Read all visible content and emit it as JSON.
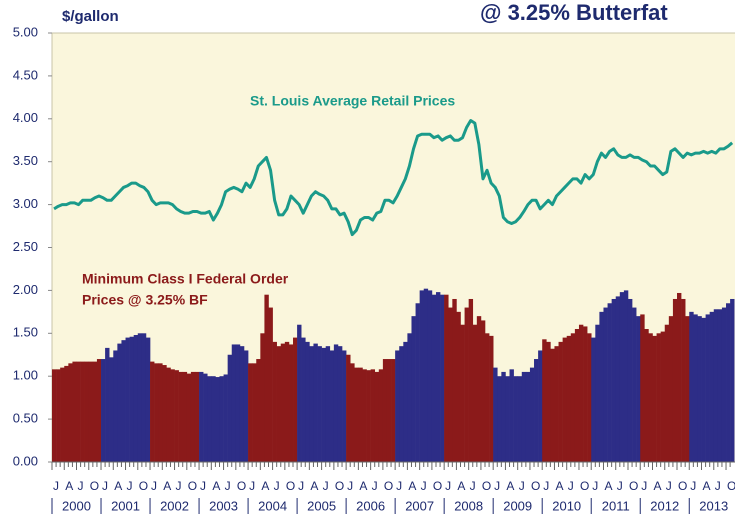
{
  "chart_data": {
    "type": "bar",
    "title": "@ 3.25% Butterfat",
    "y_label": "$/gallon",
    "ylim": [
      0,
      5
    ],
    "yticks": [
      {
        "value": 0,
        "label": "0.00"
      },
      {
        "value": 0.5,
        "label": "0.50"
      },
      {
        "value": 1,
        "label": "1.00"
      },
      {
        "value": 1.5,
        "label": "1.50"
      },
      {
        "value": 2,
        "label": "2.00"
      },
      {
        "value": 2.5,
        "label": "2.50"
      },
      {
        "value": 3,
        "label": "3.00"
      },
      {
        "value": 3.5,
        "label": "3.50"
      },
      {
        "value": 4,
        "label": "4.00"
      },
      {
        "value": 4.5,
        "label": "4.50"
      },
      {
        "value": 5,
        "label": "5.00"
      }
    ],
    "grid": false,
    "year_labels": [
      "2000",
      "2001",
      "2002",
      "2003",
      "2004",
      "2005",
      "2006",
      "2007",
      "2008",
      "2009",
      "2010",
      "2011",
      "2012",
      "2013"
    ],
    "categories": [
      "J",
      null,
      null,
      "A",
      null,
      null,
      "J",
      null,
      null,
      "O",
      null,
      null,
      "J",
      null,
      null,
      "A",
      null,
      null,
      "J",
      null,
      null,
      "O",
      null,
      null,
      "J",
      null,
      null,
      "A",
      null,
      null,
      "J",
      null,
      null,
      "O",
      null,
      null,
      "J",
      null,
      null,
      "A",
      null,
      null,
      "J",
      null,
      null,
      "O",
      null,
      null,
      "J",
      null,
      null,
      "A",
      null,
      null,
      "J",
      null,
      null,
      "O",
      null,
      null,
      "J",
      null,
      null,
      "A",
      null,
      null,
      "J",
      null,
      null,
      "O",
      null,
      null,
      "J",
      null,
      null,
      "A",
      null,
      null,
      "J",
      null,
      null,
      "O",
      null,
      null,
      "J",
      null,
      null,
      "A",
      null,
      null,
      "J",
      null,
      null,
      "O",
      null,
      null,
      "J",
      null,
      null,
      "A",
      null,
      null,
      "J",
      null,
      null,
      "O",
      null,
      null,
      "J",
      null,
      null,
      "A",
      null,
      null,
      "J",
      null,
      null,
      "O",
      null,
      null,
      "J",
      null,
      null,
      "A",
      null,
      null,
      "J",
      null,
      null,
      "O",
      null,
      null,
      "J",
      null,
      null,
      "A",
      null,
      null,
      "J",
      null,
      null,
      "O",
      null,
      null,
      "J",
      null,
      null,
      "A",
      null,
      null,
      "J",
      null,
      null,
      "O",
      null,
      null,
      "J",
      null,
      null,
      "A",
      null,
      null,
      "J",
      null,
      null,
      "O",
      null
    ],
    "annotations": [
      {
        "text": "St. Louis Average Retail Prices",
        "color": "#1a9a8a"
      },
      {
        "text": "Minimum Class I Federal Order",
        "color": "#8b1a1a"
      },
      {
        "text": "Prices @ 3.25% BF",
        "color": "#8b1a1a"
      }
    ],
    "series": [
      {
        "type": "bar",
        "colors": [
          "#8b1a1a",
          "#2d2d87"
        ],
        "values": [
          1.08,
          1.08,
          1.1,
          1.12,
          1.15,
          1.17,
          1.17,
          1.17,
          1.17,
          1.17,
          1.17,
          1.2,
          1.2,
          1.33,
          1.22,
          1.3,
          1.38,
          1.42,
          1.45,
          1.46,
          1.48,
          1.5,
          1.5,
          1.45,
          1.17,
          1.15,
          1.15,
          1.13,
          1.1,
          1.08,
          1.07,
          1.05,
          1.05,
          1.03,
          1.05,
          1.05,
          1.05,
          1.03,
          1.0,
          1.0,
          0.99,
          1.0,
          1.02,
          1.25,
          1.37,
          1.37,
          1.35,
          1.3,
          1.15,
          1.15,
          1.2,
          1.5,
          1.95,
          1.8,
          1.4,
          1.35,
          1.38,
          1.4,
          1.37,
          1.45,
          1.6,
          1.45,
          1.4,
          1.35,
          1.38,
          1.35,
          1.33,
          1.35,
          1.3,
          1.37,
          1.35,
          1.3,
          1.25,
          1.15,
          1.1,
          1.1,
          1.08,
          1.07,
          1.08,
          1.05,
          1.08,
          1.2,
          1.2,
          1.2,
          1.3,
          1.35,
          1.4,
          1.5,
          1.7,
          1.85,
          2.0,
          2.02,
          2.0,
          1.95,
          1.98,
          1.95,
          1.95,
          1.8,
          1.9,
          1.75,
          1.6,
          1.8,
          1.9,
          1.6,
          1.7,
          1.65,
          1.5,
          1.47,
          1.1,
          1.0,
          1.05,
          1.0,
          1.08,
          1.0,
          1.0,
          1.05,
          1.05,
          1.1,
          1.2,
          1.3,
          1.43,
          1.4,
          1.32,
          1.35,
          1.4,
          1.45,
          1.47,
          1.5,
          1.55,
          1.6,
          1.58,
          1.5,
          1.45,
          1.6,
          1.75,
          1.8,
          1.85,
          1.9,
          1.93,
          1.98,
          2.0,
          1.9,
          1.8,
          1.7,
          1.72,
          1.55,
          1.5,
          1.47,
          1.5,
          1.52,
          1.6,
          1.7,
          1.9,
          1.97,
          1.9,
          1.7,
          1.75,
          1.72,
          1.7,
          1.68,
          1.72,
          1.75,
          1.78,
          1.78,
          1.8,
          1.85,
          1.9
        ]
      },
      {
        "type": "line",
        "color": "#1a9a8a",
        "values": [
          2.95,
          2.98,
          3.0,
          3.0,
          3.02,
          3.02,
          3.0,
          3.05,
          3.05,
          3.05,
          3.08,
          3.1,
          3.08,
          3.05,
          3.05,
          3.1,
          3.15,
          3.2,
          3.22,
          3.25,
          3.25,
          3.22,
          3.2,
          3.15,
          3.05,
          3.0,
          3.02,
          3.02,
          3.02,
          3.0,
          2.95,
          2.92,
          2.9,
          2.9,
          2.92,
          2.92,
          2.9,
          2.9,
          2.92,
          2.82,
          2.9,
          3.0,
          3.15,
          3.18,
          3.2,
          3.18,
          3.15,
          3.25,
          3.2,
          3.3,
          3.45,
          3.5,
          3.55,
          3.4,
          3.05,
          2.88,
          2.88,
          2.95,
          3.1,
          3.05,
          3.0,
          2.9,
          3.0,
          3.1,
          3.15,
          3.12,
          3.1,
          3.05,
          2.95,
          2.95,
          2.88,
          2.9,
          2.8,
          2.65,
          2.7,
          2.82,
          2.85,
          2.85,
          2.82,
          2.9,
          2.92,
          3.05,
          3.05,
          3.02,
          3.1,
          3.2,
          3.3,
          3.45,
          3.65,
          3.8,
          3.82,
          3.82,
          3.82,
          3.78,
          3.8,
          3.75,
          3.78,
          3.8,
          3.75,
          3.75,
          3.78,
          3.9,
          3.98,
          3.95,
          3.7,
          3.3,
          3.4,
          3.25,
          3.2,
          3.1,
          2.85,
          2.8,
          2.78,
          2.8,
          2.85,
          2.92,
          3.0,
          3.05,
          3.05,
          2.95,
          3.0,
          3.05,
          3.0,
          3.1,
          3.15,
          3.2,
          3.25,
          3.3,
          3.3,
          3.25,
          3.35,
          3.3,
          3.35,
          3.5,
          3.6,
          3.55,
          3.62,
          3.65,
          3.58,
          3.55,
          3.55,
          3.58,
          3.55,
          3.55,
          3.52,
          3.5,
          3.45,
          3.45,
          3.4,
          3.35,
          3.38,
          3.62,
          3.65,
          3.6,
          3.55,
          3.6,
          3.58,
          3.6,
          3.6,
          3.62,
          3.6,
          3.62,
          3.6,
          3.65,
          3.65,
          3.68,
          3.72
        ]
      }
    ]
  }
}
